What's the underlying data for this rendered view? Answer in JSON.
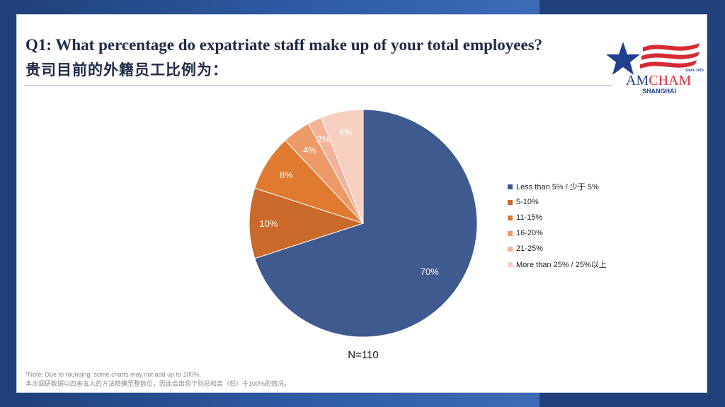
{
  "header": {
    "title_en": "Q1: What percentage do expatriate staff make up of your total employees?",
    "title_zh": "贵司目前的外籍员工比例为："
  },
  "logo": {
    "since": "Since 1915",
    "name_part1": "AM",
    "name_part2": "CHAM",
    "city": "SHANGHAI",
    "colors": {
      "star": "#1f3f8f",
      "stripes": "#d62b35",
      "text_blue": "#1f3f8f"
    }
  },
  "chart_data": {
    "type": "pie",
    "slices": [
      {
        "label": "Less than 5% / 少于 5%",
        "value": 70,
        "display": "70%",
        "color": "#3e5a8f"
      },
      {
        "label": "5-10%",
        "value": 10,
        "display": "10%",
        "color": "#c96a2a"
      },
      {
        "label": "11-15%",
        "value": 8,
        "display": "8%",
        "color": "#e07a30"
      },
      {
        "label": "16-20%",
        "value": 4,
        "display": "4%",
        "color": "#ee9a68"
      },
      {
        "label": "21-25%",
        "value": 2,
        "display": "2%",
        "color": "#f3b39a"
      },
      {
        "label": "More than 25% / 25%以上",
        "value": 6,
        "display": "6%",
        "color": "#f7cfc0"
      }
    ],
    "sample_label": "N=110",
    "legend_position": "right"
  },
  "note": {
    "line1": "*Note: Due to rounding, some charts may not add up to 100%.",
    "line2": "本次调研数据以四舍五入的方法精确至整数位，因此会出现个别总和高（低）于100%的情况。"
  }
}
